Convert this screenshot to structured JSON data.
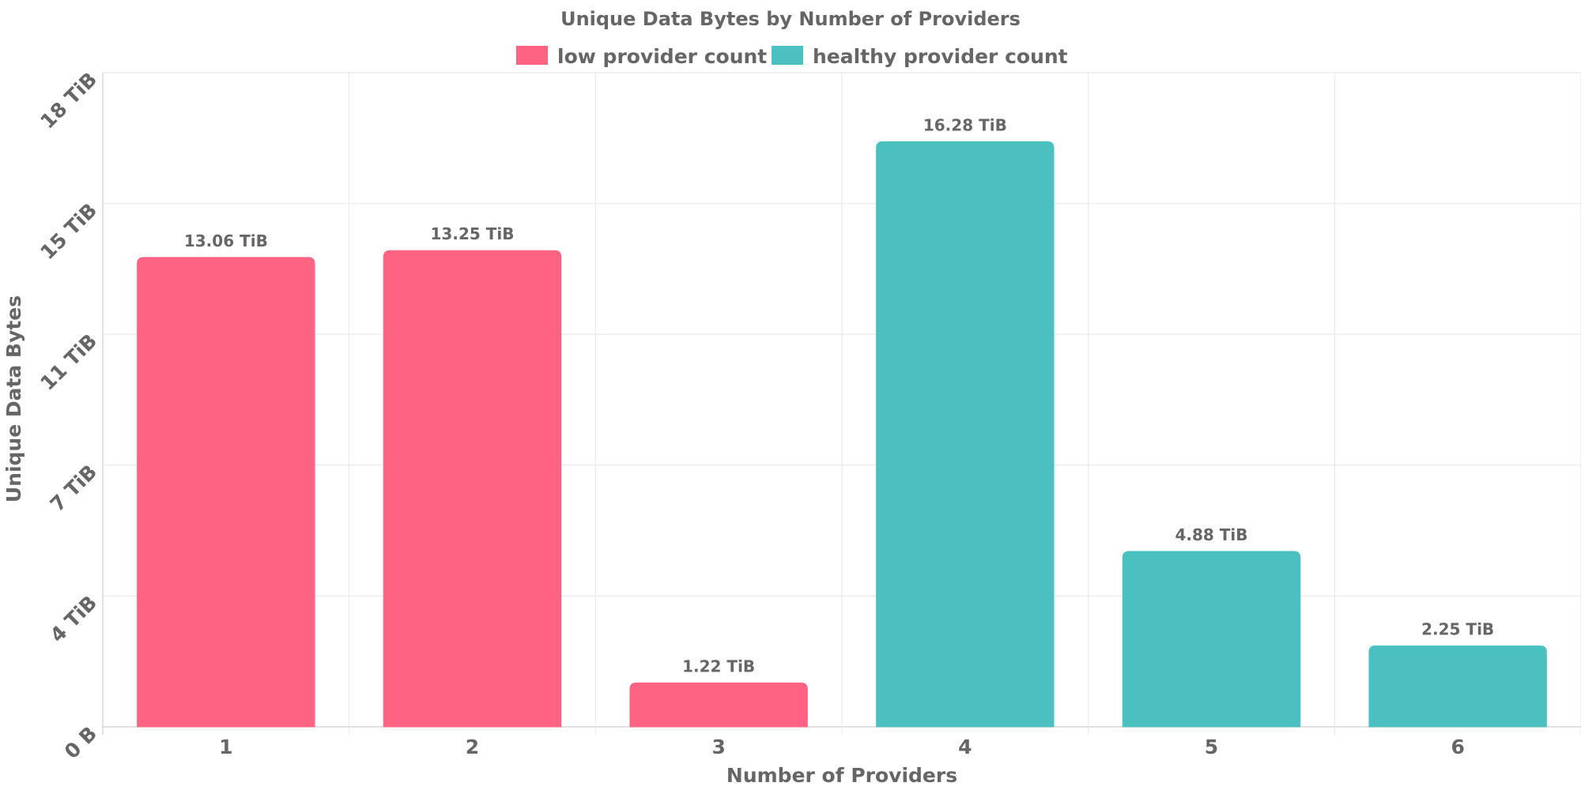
{
  "chart_data": {
    "type": "bar",
    "title": "Unique Data Bytes by Number of Providers",
    "xlabel": "Number of Providers",
    "ylabel": "Unique Data Bytes",
    "categories": [
      "1",
      "2",
      "3",
      "4",
      "5",
      "6"
    ],
    "values": [
      13.06,
      13.25,
      1.22,
      16.28,
      4.88,
      2.25
    ],
    "value_labels": [
      "13.06 TiB",
      "13.25 TiB",
      "1.22 TiB",
      "16.28 TiB",
      "4.88 TiB",
      "2.25 TiB"
    ],
    "groups": [
      "low provider count",
      "low provider count",
      "low provider count",
      "healthy provider count",
      "healthy provider count",
      "healthy provider count"
    ],
    "legend": [
      {
        "label": "low provider count",
        "color": "#ff6384"
      },
      {
        "label": "healthy provider count",
        "color": "#4bc0c0"
      }
    ],
    "legend_position": "top-center",
    "yticks": [
      0,
      3.64,
      7.28,
      10.92,
      14.56,
      18.2
    ],
    "ytick_labels": [
      "0 B",
      "4 TiB",
      "7 TiB",
      "11 TiB",
      "15 TiB",
      "18 TiB"
    ],
    "ylim": [
      0,
      18.2
    ],
    "grid": true,
    "colors": {
      "text": "#666666",
      "grid": "#e6e6e6"
    }
  }
}
